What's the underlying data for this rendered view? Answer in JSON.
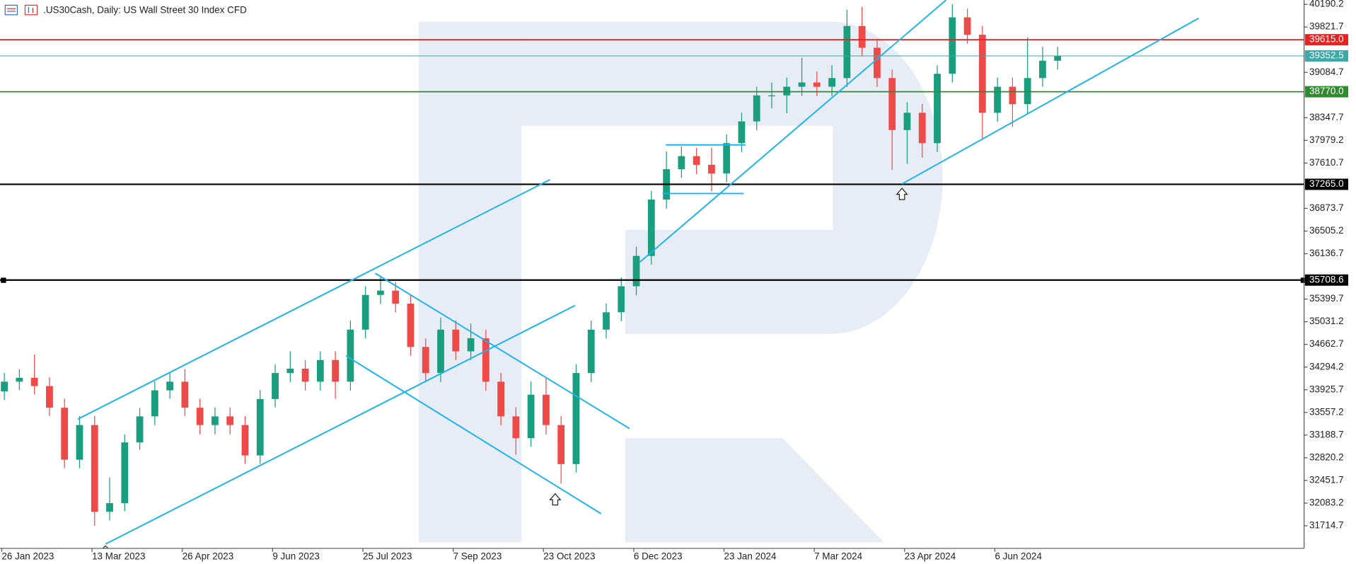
{
  "chart_data": {
    "type": "candlestick",
    "title": ".US30Cash, Daily:  US Wall Street 30 Index CFD",
    "up_color": "#1a9e7e",
    "down_color": "#ef4a4a",
    "ylim": [
      31347,
      40261
    ],
    "yticks": [
      40190.2,
      39821.7,
      39084.7,
      38347.7,
      37979.2,
      37610.7,
      36873.7,
      36505.2,
      36136.7,
      35399.7,
      35031.2,
      34662.7,
      34294.2,
      33925.7,
      33557.2,
      33188.7,
      32820.2,
      32451.7,
      32083.2,
      31714.7
    ],
    "levels": [
      {
        "value": 39615,
        "label": "39615.0",
        "color": "#e8231f"
      },
      {
        "value": 39352.5,
        "color": "#3aa9a8"
      },
      {
        "value": 38770,
        "label": "38770.0",
        "color": "#2e8b2e"
      },
      {
        "value": 37265,
        "label": "37265.0",
        "color": "#000000"
      },
      {
        "value": 35708.6,
        "color": "#000000"
      }
    ],
    "categories": [
      "26 Jan 2023",
      null,
      null,
      null,
      null,
      null,
      "13 Mar 2023",
      null,
      null,
      null,
      null,
      null,
      "26 Apr 2023",
      null,
      null,
      null,
      null,
      null,
      "9 Jun 2023",
      null,
      null,
      null,
      null,
      null,
      "25 Jul 2023",
      null,
      null,
      null,
      null,
      null,
      "7 Sep 2023",
      null,
      null,
      null,
      null,
      null,
      "23 Oct 2023",
      null,
      null,
      null,
      null,
      null,
      "6 Dec 2023",
      null,
      null,
      null,
      null,
      null,
      "23 Jan 2024",
      null,
      null,
      null,
      null,
      null,
      "7 Mar 2024",
      null,
      null,
      null,
      null,
      null,
      "23 Apr 2024",
      null,
      null,
      null,
      null,
      null,
      "6 Jun 2024",
      null,
      null,
      null,
      null
    ],
    "ohlc": [
      [
        33900,
        34200,
        33760,
        34057
      ],
      [
        34057,
        34260,
        33920,
        34120
      ],
      [
        34120,
        34500,
        33850,
        33986
      ],
      [
        33986,
        34130,
        33500,
        33634
      ],
      [
        33634,
        33780,
        32650,
        32788
      ],
      [
        32788,
        33500,
        32650,
        33352
      ],
      [
        33352,
        33500,
        31714,
        31942
      ],
      [
        31942,
        32500,
        31800,
        32083
      ],
      [
        32083,
        33200,
        31950,
        33070
      ],
      [
        33070,
        33630,
        32950,
        33493
      ],
      [
        33493,
        34060,
        33350,
        33916
      ],
      [
        33916,
        34200,
        33780,
        34057
      ],
      [
        34057,
        34260,
        33500,
        33634
      ],
      [
        33634,
        33780,
        33200,
        33352
      ],
      [
        33352,
        33640,
        33200,
        33493
      ],
      [
        33493,
        33640,
        33200,
        33352
      ],
      [
        33352,
        33500,
        32720,
        32858
      ],
      [
        32858,
        33920,
        32720,
        33775
      ],
      [
        33775,
        34340,
        33640,
        34198
      ],
      [
        34198,
        34550,
        34050,
        34268
      ],
      [
        34268,
        34410,
        33910,
        34057
      ],
      [
        34057,
        34550,
        33910,
        34409
      ],
      [
        34409,
        34550,
        33780,
        34057
      ],
      [
        34057,
        35050,
        33910,
        34903
      ],
      [
        34903,
        35610,
        34760,
        35467
      ],
      [
        35467,
        35760,
        35320,
        35537
      ],
      [
        35537,
        35680,
        35180,
        35326
      ],
      [
        35326,
        35470,
        34480,
        34621
      ],
      [
        34621,
        34760,
        34050,
        34198
      ],
      [
        34198,
        35100,
        34050,
        34903
      ],
      [
        34903,
        35050,
        34410,
        34550
      ],
      [
        34550,
        35000,
        34410,
        34762
      ],
      [
        34762,
        34900,
        33910,
        34057
      ],
      [
        34057,
        34200,
        33350,
        33493
      ],
      [
        33493,
        33640,
        32870,
        33140
      ],
      [
        33140,
        34060,
        33000,
        33845
      ],
      [
        33845,
        34120,
        33200,
        33352
      ],
      [
        33352,
        33500,
        32400,
        32717
      ],
      [
        32717,
        34340,
        32580,
        34198
      ],
      [
        34198,
        35050,
        34050,
        34903
      ],
      [
        34903,
        35330,
        34760,
        35185
      ],
      [
        35185,
        35750,
        35040,
        35608
      ],
      [
        35608,
        36250,
        35460,
        36101
      ],
      [
        36101,
        37160,
        35960,
        37018
      ],
      [
        37018,
        37800,
        36870,
        37511
      ],
      [
        37511,
        37880,
        37370,
        37723
      ],
      [
        37723,
        37860,
        37430,
        37582
      ],
      [
        37582,
        37860,
        37150,
        37441
      ],
      [
        37441,
        38080,
        37300,
        37934
      ],
      [
        37934,
        38430,
        37790,
        38287
      ],
      [
        38287,
        38850,
        38140,
        38710
      ],
      [
        38710,
        38920,
        38500,
        38710
      ],
      [
        38710,
        39000,
        38420,
        38851
      ],
      [
        38851,
        39320,
        38700,
        38921
      ],
      [
        38921,
        39100,
        38700,
        38851
      ],
      [
        38851,
        39200,
        38700,
        38992
      ],
      [
        38992,
        40100,
        38850,
        39838
      ],
      [
        39838,
        40150,
        39340,
        39485
      ],
      [
        39485,
        39630,
        38850,
        38992
      ],
      [
        38992,
        39130,
        37500,
        38146
      ],
      [
        38146,
        38600,
        37600,
        38428
      ],
      [
        38428,
        38570,
        37700,
        37934
      ],
      [
        37934,
        39200,
        37790,
        39062
      ],
      [
        39062,
        40190,
        38920,
        39979
      ],
      [
        39979,
        40120,
        39550,
        39697
      ],
      [
        39697,
        39840,
        38000,
        38428
      ],
      [
        38428,
        39000,
        38280,
        38851
      ],
      [
        38851,
        39000,
        38200,
        38569
      ],
      [
        38569,
        39650,
        38420,
        38992
      ],
      [
        38992,
        39500,
        38850,
        39274
      ],
      [
        39274,
        39500,
        39130,
        39352.5
      ]
    ]
  }
}
